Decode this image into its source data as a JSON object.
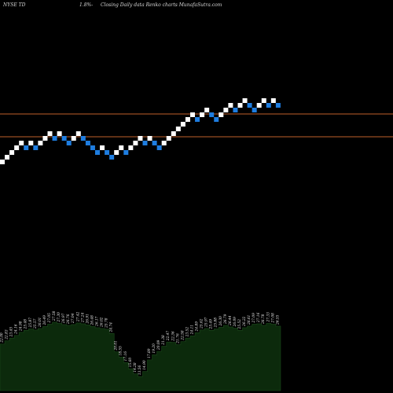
{
  "header": {
    "ticker": "NYSE TD",
    "change": "1.8%",
    "change_sep": "-",
    "caption": "Closing Daily data Renko charts MunafaSutra.com"
  },
  "colors": {
    "background": "#000000",
    "up_brick": "#ffffff",
    "down_brick": "#1e7de0",
    "support_line": "#c0602a",
    "volume_fill": "#0c2a0c",
    "volume_stroke": "#1c4a1c"
  },
  "chart_data": [
    {
      "type": "renko",
      "price_lines": [
        68.0,
        60.4
      ],
      "bricks": [
        {
          "dir": "up",
          "level": 0
        },
        {
          "dir": "up",
          "level": 1
        },
        {
          "dir": "up",
          "level": 2
        },
        {
          "dir": "up",
          "level": 3
        },
        {
          "dir": "up",
          "level": 4
        },
        {
          "dir": "down",
          "level": 3
        },
        {
          "dir": "up",
          "level": 4
        },
        {
          "dir": "down",
          "level": 3
        },
        {
          "dir": "up",
          "level": 4
        },
        {
          "dir": "up",
          "level": 5
        },
        {
          "dir": "up",
          "level": 6
        },
        {
          "dir": "down",
          "level": 5
        },
        {
          "dir": "up",
          "level": 6
        },
        {
          "dir": "down",
          "level": 5
        },
        {
          "dir": "down",
          "level": 4
        },
        {
          "dir": "up",
          "level": 5
        },
        {
          "dir": "up",
          "level": 6
        },
        {
          "dir": "down",
          "level": 5
        },
        {
          "dir": "down",
          "level": 4
        },
        {
          "dir": "down",
          "level": 3
        },
        {
          "dir": "down",
          "level": 2
        },
        {
          "dir": "up",
          "level": 3
        },
        {
          "dir": "down",
          "level": 2
        },
        {
          "dir": "down",
          "level": 1
        },
        {
          "dir": "up",
          "level": 2
        },
        {
          "dir": "up",
          "level": 3
        },
        {
          "dir": "down",
          "level": 2
        },
        {
          "dir": "up",
          "level": 3
        },
        {
          "dir": "up",
          "level": 4
        },
        {
          "dir": "up",
          "level": 5
        },
        {
          "dir": "down",
          "level": 4
        },
        {
          "dir": "up",
          "level": 5
        },
        {
          "dir": "down",
          "level": 4
        },
        {
          "dir": "down",
          "level": 3
        },
        {
          "dir": "up",
          "level": 4
        },
        {
          "dir": "up",
          "level": 5
        },
        {
          "dir": "up",
          "level": 6
        },
        {
          "dir": "up",
          "level": 7
        },
        {
          "dir": "up",
          "level": 8
        },
        {
          "dir": "up",
          "level": 9
        },
        {
          "dir": "up",
          "level": 10
        },
        {
          "dir": "down",
          "level": 9
        },
        {
          "dir": "up",
          "level": 10
        },
        {
          "dir": "up",
          "level": 11
        },
        {
          "dir": "down",
          "level": 10
        },
        {
          "dir": "down",
          "level": 9
        },
        {
          "dir": "up",
          "level": 10
        },
        {
          "dir": "up",
          "level": 11
        },
        {
          "dir": "up",
          "level": 12
        },
        {
          "dir": "down",
          "level": 11
        },
        {
          "dir": "up",
          "level": 12
        },
        {
          "dir": "up",
          "level": 13
        },
        {
          "dir": "down",
          "level": 12
        },
        {
          "dir": "down",
          "level": 11
        },
        {
          "dir": "up",
          "level": 12
        },
        {
          "dir": "up",
          "level": 13
        },
        {
          "dir": "down",
          "level": 12
        },
        {
          "dir": "up",
          "level": 13
        },
        {
          "dir": "down",
          "level": 12
        }
      ]
    },
    {
      "type": "area",
      "values": [
        22.0,
        22.8,
        23.5,
        24.2,
        25.0,
        25.5,
        25.9,
        25.6,
        26.0,
        26.5,
        27.1,
        27.6,
        27.3,
        27.0,
        26.8,
        27.0,
        27.4,
        27.2,
        26.9,
        26.5,
        26.2,
        26.0,
        25.8,
        24.7,
        20.0,
        18.6,
        17.2,
        15.6,
        14.3,
        13.6,
        14.9,
        17.9,
        19.2,
        20.1,
        21.4,
        22.5,
        22.4,
        21.8,
        22.6,
        23.5,
        24.1,
        24.9,
        25.6,
        26.0,
        25.5,
        25.9,
        26.3,
        26.8,
        26.4,
        26.1,
        25.5,
        26.2,
        26.6,
        27.1,
        27.2,
        26.8,
        27.3,
        27.1,
        26.6
      ],
      "labels": [
        "22.00",
        "22.83",
        "23.45",
        "24.16",
        "24.98",
        "25.48",
        "25.87",
        "25.57",
        "26.01",
        "26.49",
        "27.05",
        "27.58",
        "27.30",
        "26.97",
        "26.76",
        "27.04",
        "27.42",
        "27.24",
        "26.91",
        "26.48",
        "26.17",
        "26.02",
        "25.78",
        "24.74",
        "20.01",
        "18.55",
        "17.16",
        "15.60",
        "14.28",
        "13.56",
        "14.90",
        "17.89",
        "19.20",
        "20.09",
        "21.38",
        "22.47",
        "22.36",
        "21.76",
        "22.58",
        "23.52",
        "24.11",
        "24.89",
        "25.62",
        "25.97",
        "25.49",
        "25.88",
        "26.30",
        "26.79",
        "26.44",
        "26.09",
        "25.52",
        "26.22",
        "26.61",
        "27.09",
        "27.16",
        "26.78",
        "27.33",
        "27.08",
        "26.55"
      ]
    }
  ]
}
